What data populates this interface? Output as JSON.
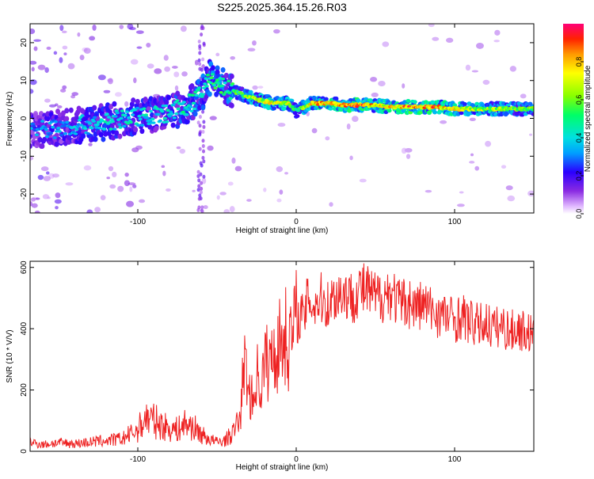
{
  "title": "S225.2025.364.15.26.R03",
  "chart_data": [
    {
      "type": "heatmap",
      "xlabel": "Height of straight line (km)",
      "ylabel": "Frequency (Hz)",
      "xlim": [
        -168,
        150
      ],
      "ylim": [
        -25,
        25
      ],
      "x_ticks": [
        -100,
        0,
        100
      ],
      "y_ticks": [
        -20,
        -10,
        0,
        10,
        20
      ],
      "grid": false,
      "colorbar": {
        "label": "Normalized spectral amplitude",
        "range": [
          0,
          1
        ],
        "ticks": [
          0.0,
          0.2,
          0.4,
          0.6,
          0.8
        ]
      },
      "ridge": {
        "x": [
          -160,
          -140,
          -120,
          -100,
          -80,
          -70,
          -60,
          -55,
          -45,
          -35,
          -25,
          -15,
          -5,
          0,
          10,
          20,
          30,
          40,
          50,
          60,
          70,
          80,
          90,
          100,
          110,
          120,
          130,
          140,
          150
        ],
        "y": [
          -3,
          -2,
          -1,
          0.5,
          1.5,
          3,
          6,
          11,
          8,
          6.5,
          5,
          4,
          4,
          2,
          4,
          4,
          3.5,
          3.5,
          3.5,
          3,
          3,
          3,
          3,
          2.5,
          2.5,
          2.5,
          2.5,
          2.5,
          2.5
        ],
        "amplitude": [
          0.35,
          0.4,
          0.45,
          0.45,
          0.45,
          0.5,
          0.5,
          0.55,
          0.55,
          0.6,
          0.75,
          0.8,
          0.75,
          0.5,
          0.85,
          0.9,
          0.9,
          0.95,
          0.85,
          0.85,
          0.95,
          0.95,
          0.9,
          0.8,
          0.75,
          0.7,
          0.7,
          0.65,
          0.65
        ]
      }
    },
    {
      "type": "line",
      "xlabel": "Height of straight line (km)",
      "ylabel": "SNR (10 * V/V)",
      "xlim": [
        -168,
        150
      ],
      "ylim": [
        0,
        620
      ],
      "x_ticks": [
        -100,
        0,
        100
      ],
      "y_ticks": [
        0,
        200,
        400,
        600
      ],
      "grid": false,
      "series": [
        {
          "color": "#ee2222",
          "x": [
            -168,
            -160,
            -150,
            -140,
            -130,
            -120,
            -110,
            -100,
            -95,
            -90,
            -85,
            -80,
            -75,
            -70,
            -65,
            -60,
            -55,
            -50,
            -45,
            -40,
            -35,
            -33,
            -30,
            -27,
            -25,
            -22,
            -20,
            -17,
            -15,
            -12,
            -10,
            -7,
            -5,
            -2,
            0,
            3,
            5,
            8,
            10,
            15,
            20,
            25,
            30,
            35,
            40,
            45,
            50,
            55,
            60,
            65,
            70,
            75,
            80,
            85,
            90,
            95,
            100,
            105,
            110,
            115,
            120,
            125,
            130,
            135,
            140,
            145,
            150
          ],
          "y": [
            30,
            22,
            28,
            25,
            30,
            35,
            40,
            70,
            110,
            100,
            85,
            75,
            70,
            90,
            80,
            55,
            40,
            30,
            35,
            60,
            120,
            300,
            200,
            160,
            260,
            200,
            300,
            280,
            320,
            330,
            360,
            380,
            350,
            390,
            420,
            450,
            430,
            520,
            470,
            500,
            480,
            510,
            520,
            500,
            530,
            520,
            500,
            510,
            520,
            480,
            490,
            470,
            480,
            460,
            450,
            440,
            430,
            440,
            420,
            410,
            420,
            400,
            410,
            390,
            400,
            390,
            380
          ]
        }
      ]
    }
  ]
}
